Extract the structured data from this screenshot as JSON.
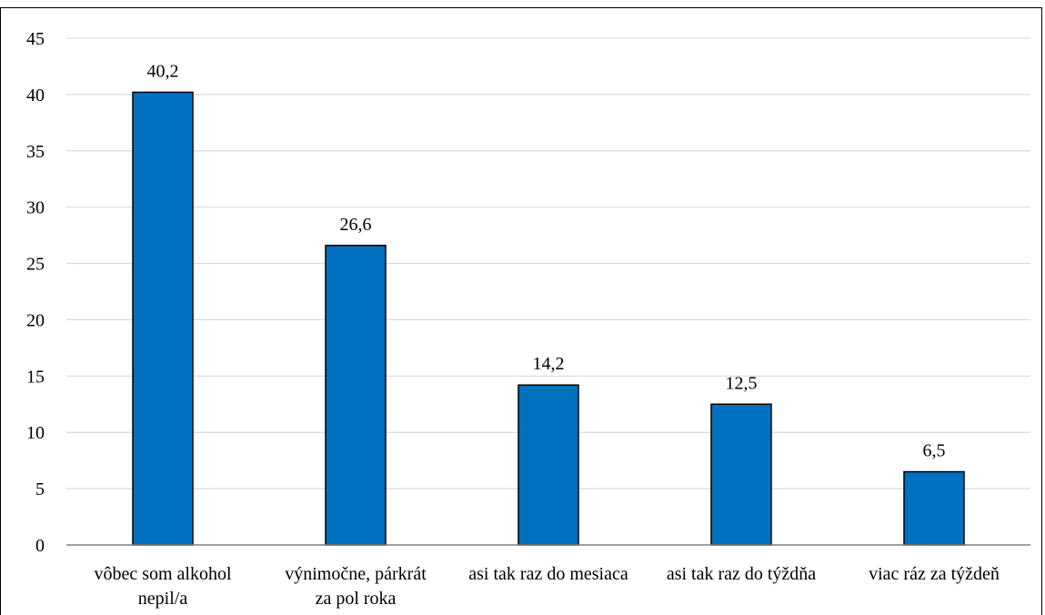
{
  "chart_data": {
    "type": "bar",
    "title": "",
    "xlabel": "",
    "ylabel": "",
    "categories": [
      [
        "vôbec som alkohol",
        "nepil/a"
      ],
      [
        "výnimočne, párkrát",
        "za pol roka"
      ],
      [
        "asi tak raz do mesiaca"
      ],
      [
        "asi tak raz do týždňa"
      ],
      [
        "viac ráz za týždeň"
      ]
    ],
    "values": [
      40.2,
      26.6,
      14.2,
      12.5,
      6.5
    ],
    "value_labels": [
      "40,2",
      "26,6",
      "14,2",
      "12,5",
      "6,5"
    ],
    "ylim": [
      0,
      45
    ],
    "yticks": [
      0,
      5,
      10,
      15,
      20,
      25,
      30,
      35,
      40,
      45
    ],
    "grid": true,
    "legend": "none",
    "colors": {
      "bar": "#0070c0",
      "bar_border": "#000000",
      "grid": "#d9d9d9",
      "axis": "#808080",
      "title_color": "#2f5597"
    }
  }
}
